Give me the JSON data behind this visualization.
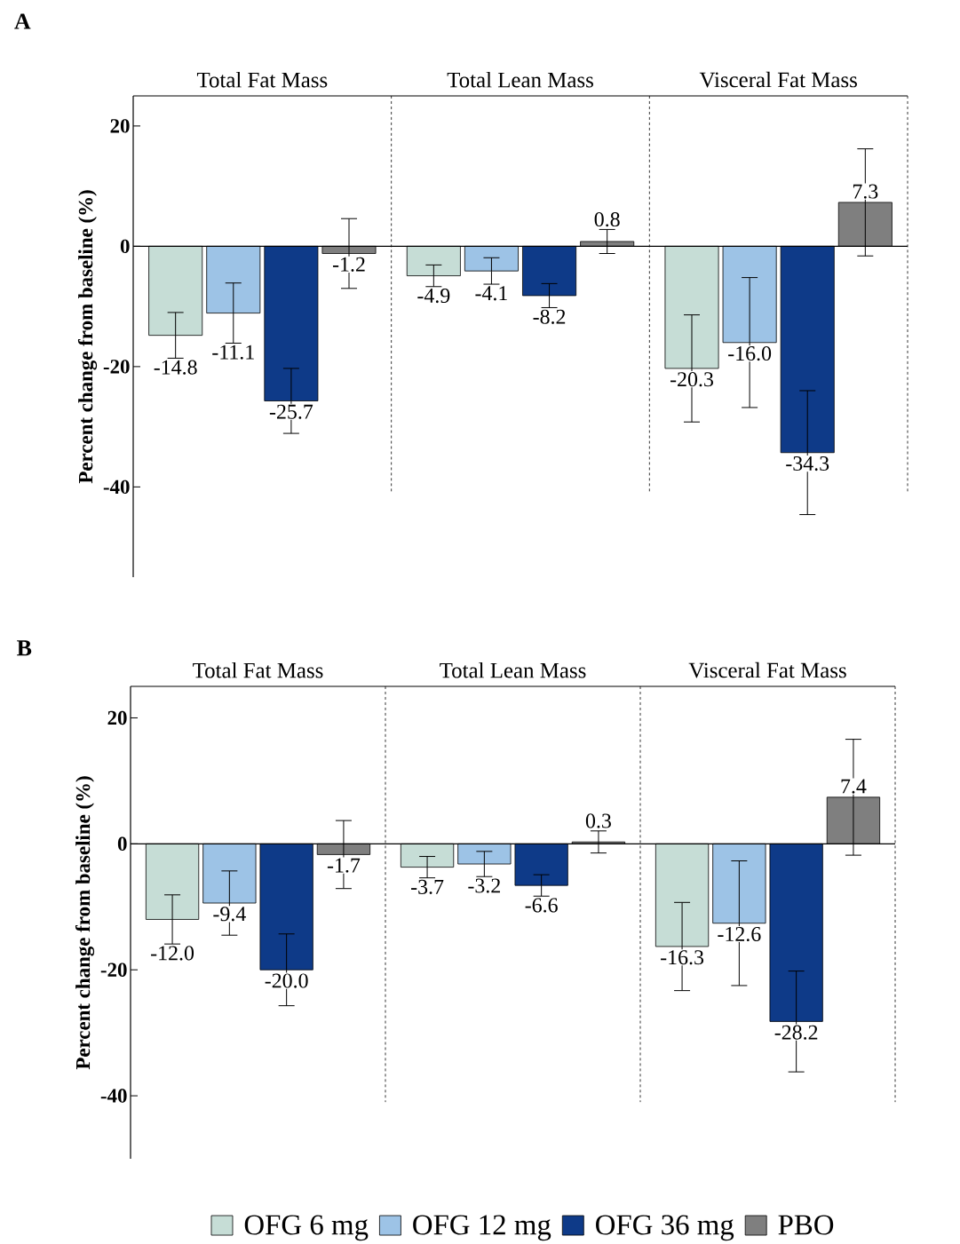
{
  "chart_data": [
    {
      "type": "bar",
      "title": "A",
      "ylabel": "Percent change from baseline (%)",
      "categories": [
        "Total Fat Mass",
        "Total Lean Mass",
        "Visceral Fat Mass"
      ],
      "ylim": [
        -55,
        25
      ],
      "yticks": [
        -40,
        -20,
        0,
        20
      ],
      "series": [
        {
          "color": "#c6ddd6",
          "values": [
            -14.8,
            -4.9,
            -20.3
          ],
          "errors": [
            3.8,
            1.8,
            8.9
          ],
          "value_labels": [
            "-14.8",
            "-4.9",
            "-20.3"
          ]
        },
        {
          "color": "#9dc3e6",
          "values": [
            -11.1,
            -4.1,
            -16.0
          ],
          "errors": [
            5.0,
            2.2,
            10.8
          ],
          "value_labels": [
            "-11.1",
            "-4.1",
            "-16.0"
          ]
        },
        {
          "color": "#0e3a88",
          "values": [
            -25.7,
            -8.2,
            -34.3
          ],
          "errors": [
            5.4,
            2.0,
            10.3
          ],
          "value_labels": [
            "-25.7",
            "-8.2",
            "-34.3"
          ]
        },
        {
          "color": "#7f7f7f",
          "values": [
            -1.2,
            0.8,
            7.3
          ],
          "errors": [
            5.8,
            2.0,
            8.9
          ],
          "value_labels": [
            "-1.2",
            "0.8",
            "7.3"
          ]
        }
      ]
    },
    {
      "type": "bar",
      "title": "B",
      "ylabel": "Percent change from baseline (%)",
      "categories": [
        "Total Fat Mass",
        "Total Lean Mass",
        "Visceral Fat Mass"
      ],
      "ylim": [
        -50,
        25
      ],
      "yticks": [
        -40,
        -20,
        0,
        20
      ],
      "legend": "bottom",
      "series": [
        {
          "name": "OFG 6 mg",
          "color": "#c6ddd6",
          "values": [
            -12.0,
            -3.7,
            -16.3
          ],
          "errors": [
            3.9,
            1.7,
            7.0
          ],
          "value_labels": [
            "-12.0",
            "-3.7",
            "-16.3"
          ]
        },
        {
          "name": "OFG 12 mg",
          "color": "#9dc3e6",
          "values": [
            -9.4,
            -3.2,
            -12.6
          ],
          "errors": [
            5.1,
            2.0,
            9.9
          ],
          "value_labels": [
            "-9.4",
            "-3.2",
            "-12.6"
          ]
        },
        {
          "name": "OFG 36 mg",
          "color": "#0e3a88",
          "values": [
            -20.0,
            -6.6,
            -28.2
          ],
          "errors": [
            5.7,
            1.7,
            8.0
          ],
          "value_labels": [
            "-20.0",
            "-6.6",
            "-28.2"
          ]
        },
        {
          "name": "PBO",
          "color": "#7f7f7f",
          "values": [
            -1.7,
            0.3,
            7.4
          ],
          "errors": [
            5.4,
            1.75,
            9.2
          ],
          "value_labels": [
            "-1.7",
            "0.3",
            "7.4"
          ]
        }
      ]
    }
  ]
}
